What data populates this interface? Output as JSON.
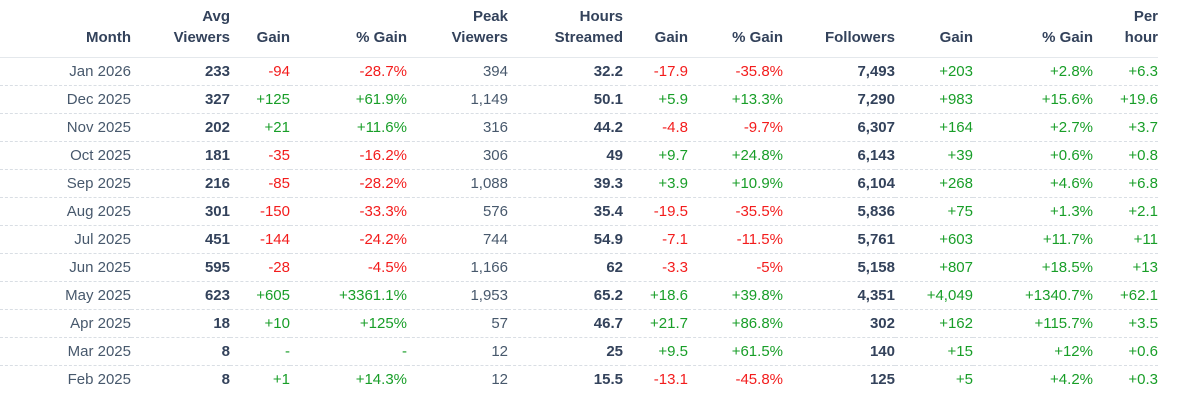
{
  "colors": {
    "positive": "#189e28",
    "negative": "#f31c1c",
    "text_dark": "#33425b",
    "text_regular": "#47586c"
  },
  "table": {
    "columns": [
      {
        "key": "month",
        "label": "Month",
        "type": "month"
      },
      {
        "key": "avg-viewers",
        "label": "Avg\nViewers",
        "type": "bold"
      },
      {
        "key": "avg-gain",
        "label": "Gain",
        "type": "signed"
      },
      {
        "key": "avg-gain-pct",
        "label": "% Gain",
        "type": "signed"
      },
      {
        "key": "peak-viewers",
        "label": "Peak\nViewers",
        "type": "plain"
      },
      {
        "key": "hours-streamed",
        "label": "Hours\nStreamed",
        "type": "bold"
      },
      {
        "key": "hours-gain",
        "label": "Gain",
        "type": "signed"
      },
      {
        "key": "hours-gain-pct",
        "label": "% Gain",
        "type": "signed"
      },
      {
        "key": "followers",
        "label": "Followers",
        "type": "bold"
      },
      {
        "key": "followers-gain",
        "label": "Gain",
        "type": "signed"
      },
      {
        "key": "followers-gain-pct",
        "label": "% Gain",
        "type": "signed"
      },
      {
        "key": "per-hour",
        "label": "Per\nhour",
        "type": "signed"
      }
    ],
    "rows": [
      [
        "Jan 2026",
        "233",
        "-94",
        "-28.7%",
        "394",
        "32.2",
        "-17.9",
        "-35.8%",
        "7,493",
        "+203",
        "+2.8%",
        "+6.3"
      ],
      [
        "Dec 2025",
        "327",
        "+125",
        "+61.9%",
        "1,149",
        "50.1",
        "+5.9",
        "+13.3%",
        "7,290",
        "+983",
        "+15.6%",
        "+19.6"
      ],
      [
        "Nov 2025",
        "202",
        "+21",
        "+11.6%",
        "316",
        "44.2",
        "-4.8",
        "-9.7%",
        "6,307",
        "+164",
        "+2.7%",
        "+3.7"
      ],
      [
        "Oct 2025",
        "181",
        "-35",
        "-16.2%",
        "306",
        "49",
        "+9.7",
        "+24.8%",
        "6,143",
        "+39",
        "+0.6%",
        "+0.8"
      ],
      [
        "Sep 2025",
        "216",
        "-85",
        "-28.2%",
        "1,088",
        "39.3",
        "+3.9",
        "+10.9%",
        "6,104",
        "+268",
        "+4.6%",
        "+6.8"
      ],
      [
        "Aug 2025",
        "301",
        "-150",
        "-33.3%",
        "576",
        "35.4",
        "-19.5",
        "-35.5%",
        "5,836",
        "+75",
        "+1.3%",
        "+2.1"
      ],
      [
        "Jul 2025",
        "451",
        "-144",
        "-24.2%",
        "744",
        "54.9",
        "-7.1",
        "-11.5%",
        "5,761",
        "+603",
        "+11.7%",
        "+11"
      ],
      [
        "Jun 2025",
        "595",
        "-28",
        "-4.5%",
        "1,166",
        "62",
        "-3.3",
        "-5%",
        "5,158",
        "+807",
        "+18.5%",
        "+13"
      ],
      [
        "May 2025",
        "623",
        "+605",
        "+3361.1%",
        "1,953",
        "65.2",
        "+18.6",
        "+39.8%",
        "4,351",
        "+4,049",
        "+1340.7%",
        "+62.1"
      ],
      [
        "Apr 2025",
        "18",
        "+10",
        "+125%",
        "57",
        "46.7",
        "+21.7",
        "+86.8%",
        "302",
        "+162",
        "+115.7%",
        "+3.5"
      ],
      [
        "Mar 2025",
        "8",
        "-",
        "-",
        "12",
        "25",
        "+9.5",
        "+61.5%",
        "140",
        "+15",
        "+12%",
        "+0.6"
      ],
      [
        "Feb 2025",
        "8",
        "+1",
        "+14.3%",
        "12",
        "15.5",
        "-13.1",
        "-45.8%",
        "125",
        "+5",
        "+4.2%",
        "+0.3"
      ]
    ]
  }
}
